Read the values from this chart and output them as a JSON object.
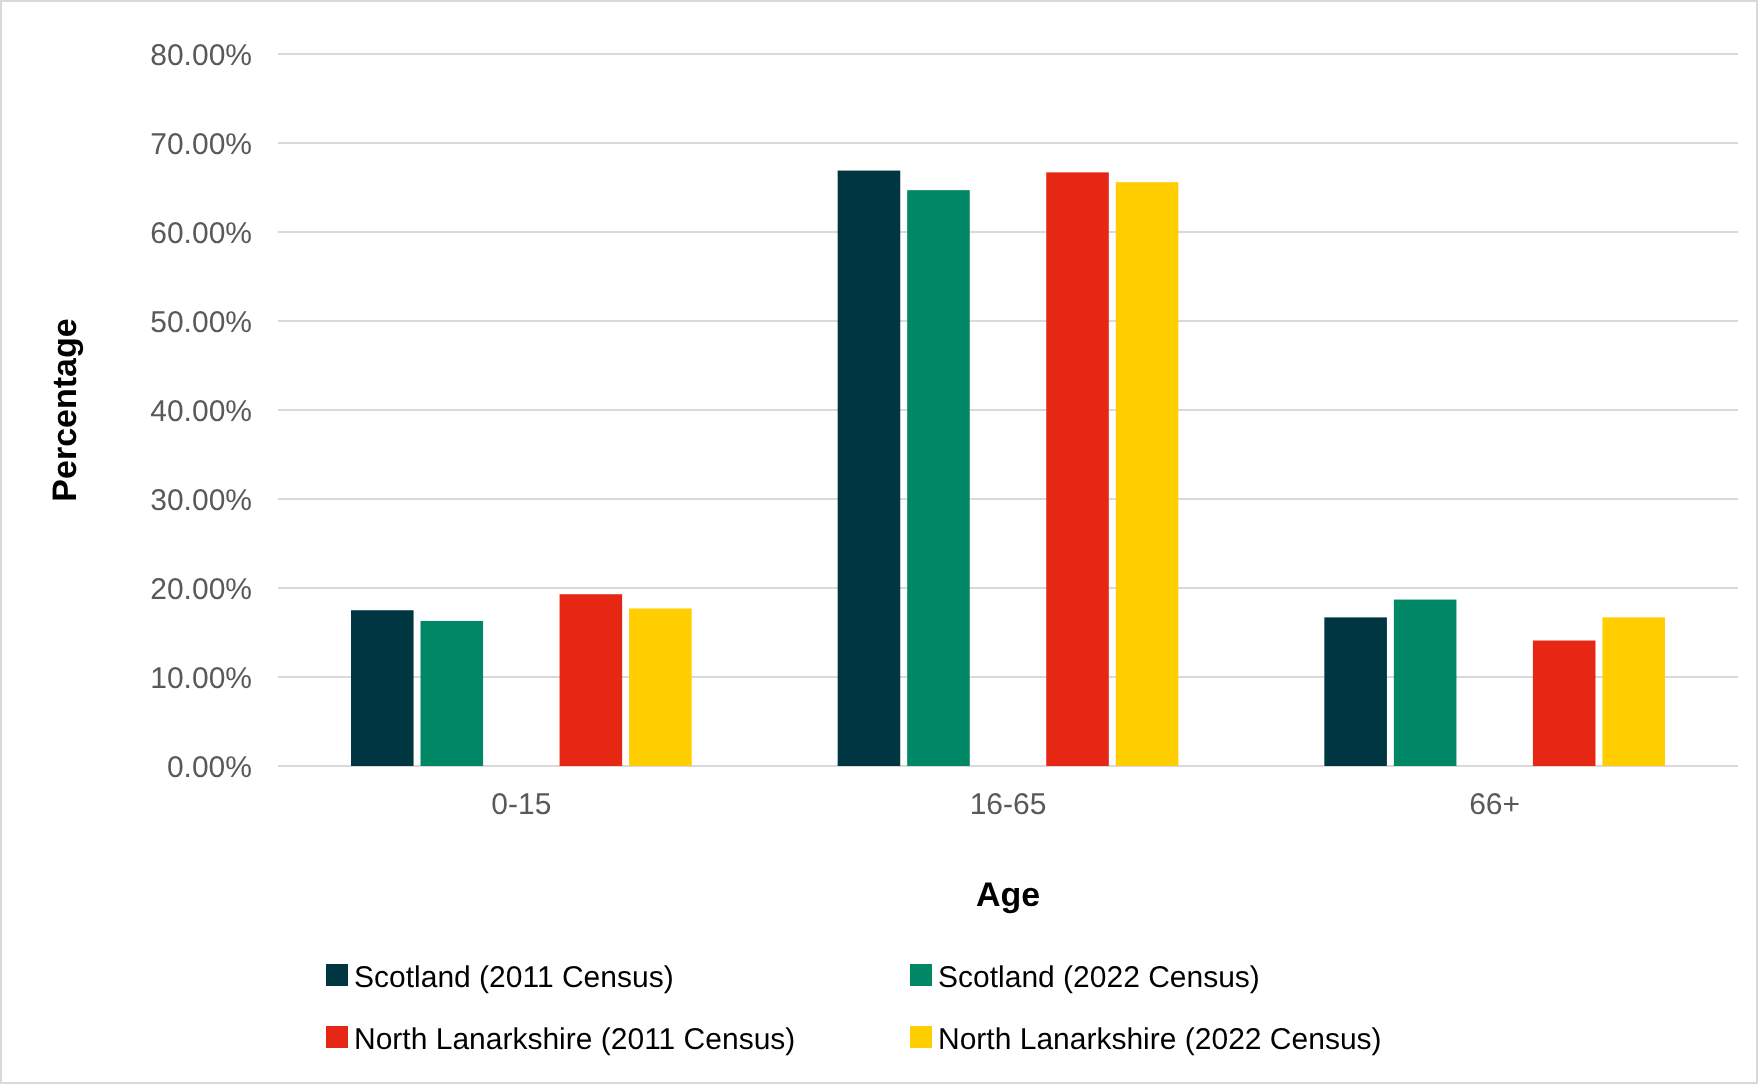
{
  "chart_data": {
    "type": "bar",
    "xlabel": "Age",
    "ylabel": "Percentage",
    "categories": [
      "0-15",
      "16-65",
      "66+"
    ],
    "series": [
      {
        "name": "Scotland (2011 Census)",
        "color": "#003641",
        "values": [
          17.5,
          66.9,
          16.7
        ]
      },
      {
        "name": "Scotland (2022 Census)",
        "color": "#008766",
        "values": [
          16.3,
          64.7,
          18.7
        ]
      },
      {
        "values": [
          null,
          null,
          null
        ]
      },
      {
        "name": "North Lanarkshire (2011 Census)",
        "color": "#e52713",
        "values": [
          19.3,
          66.7,
          14.1
        ]
      },
      {
        "name": "North Lanarkshire (2022 Census)",
        "color": "#ffcd00",
        "values": [
          17.7,
          65.6,
          16.7
        ]
      }
    ],
    "ylim": [
      0,
      80
    ],
    "yticks": [
      {
        "value": 0,
        "label": "0.00%"
      },
      {
        "value": 10,
        "label": "10.00%"
      },
      {
        "value": 20,
        "label": "20.00%"
      },
      {
        "value": 30,
        "label": "30.00%"
      },
      {
        "value": 40,
        "label": "40.00%"
      },
      {
        "value": 50,
        "label": "50.00%"
      },
      {
        "value": 60,
        "label": "60.00%"
      },
      {
        "value": 70,
        "label": "70.00%"
      },
      {
        "value": 80,
        "label": "80.00%"
      }
    ],
    "grid": "y",
    "legend": "bottom"
  }
}
